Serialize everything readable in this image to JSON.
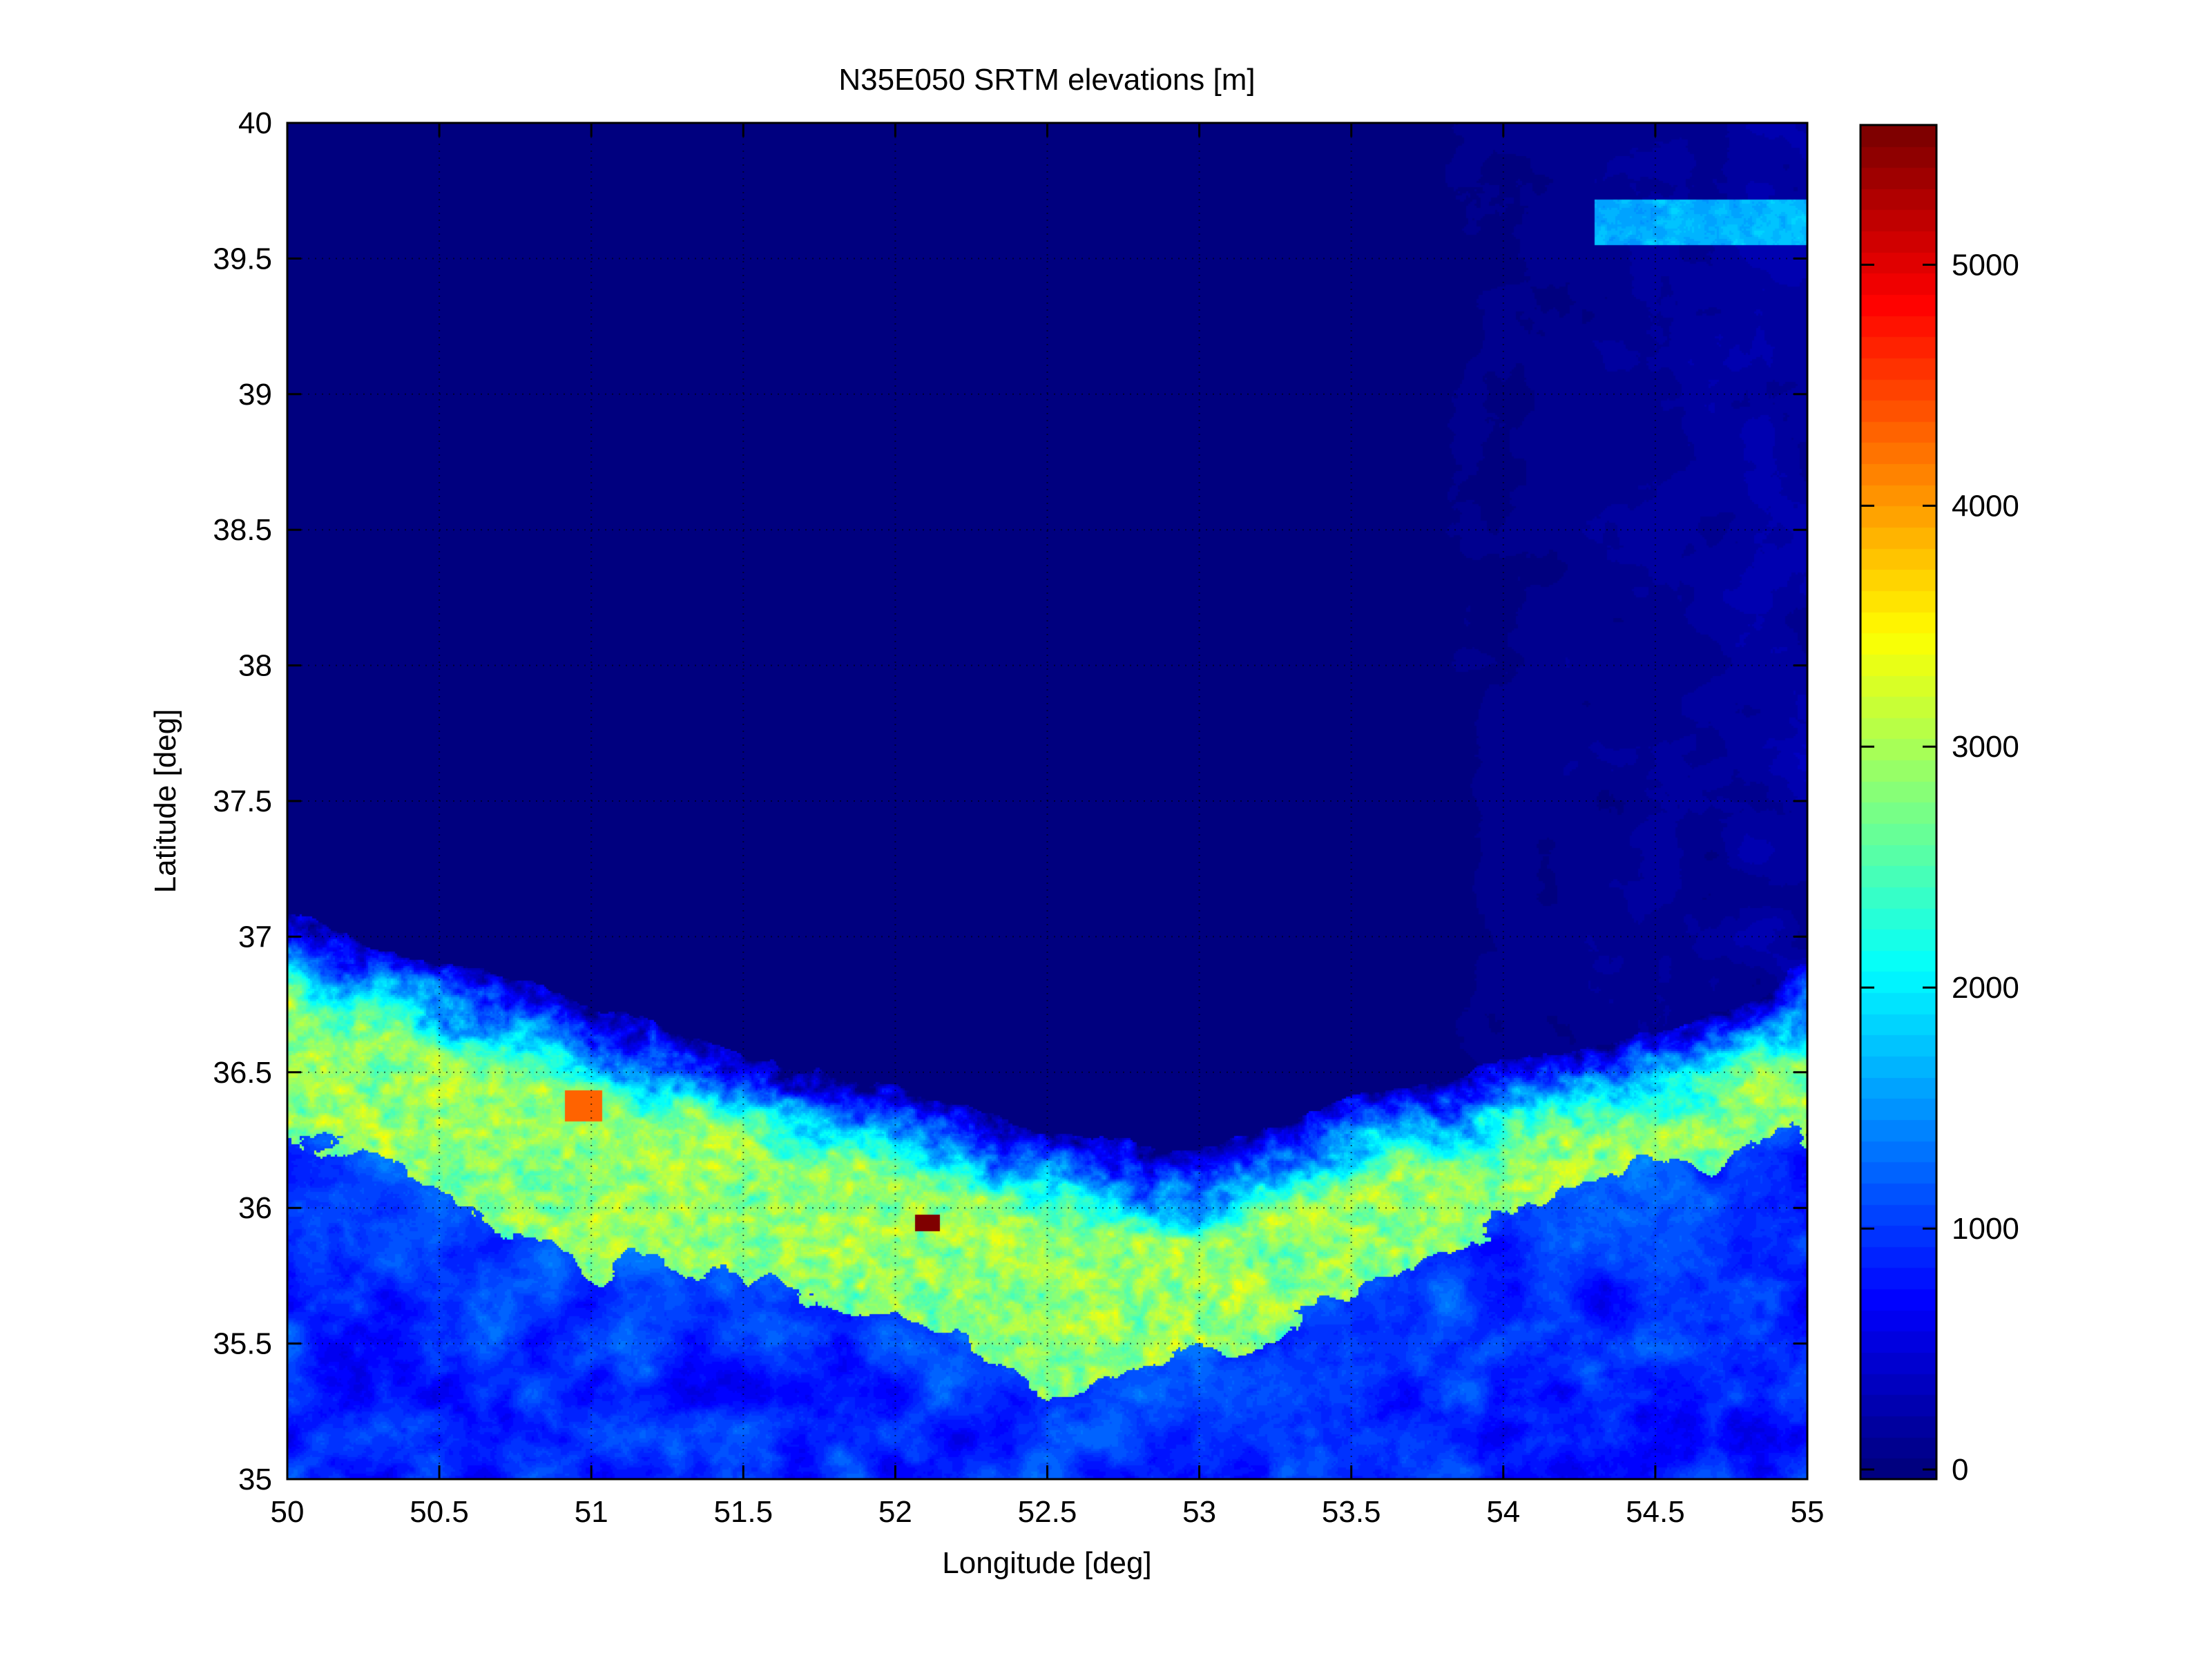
{
  "chart_data": {
    "type": "heatmap",
    "title": "N35E050 SRTM elevations [m]",
    "xlabel": "Longitude [deg]",
    "ylabel": "Latitude [deg]",
    "xlim": [
      50,
      55
    ],
    "ylim": [
      35,
      40
    ],
    "xticks": [
      "50",
      "50.5",
      "51",
      "51.5",
      "52",
      "52.5",
      "53",
      "53.5",
      "54",
      "54.5",
      "55"
    ],
    "yticks": [
      "35",
      "35.5",
      "36",
      "36.5",
      "37",
      "37.5",
      "38",
      "38.5",
      "39",
      "39.5",
      "40"
    ],
    "grid": true,
    "colormap": "jet",
    "colorbar": {
      "location": "right",
      "clim": [
        -40,
        5580
      ],
      "ticks": [
        "0",
        "1000",
        "2000",
        "3000",
        "4000",
        "5000"
      ]
    },
    "colors": {
      "low": "#00008f",
      "high": "#800000"
    }
  }
}
